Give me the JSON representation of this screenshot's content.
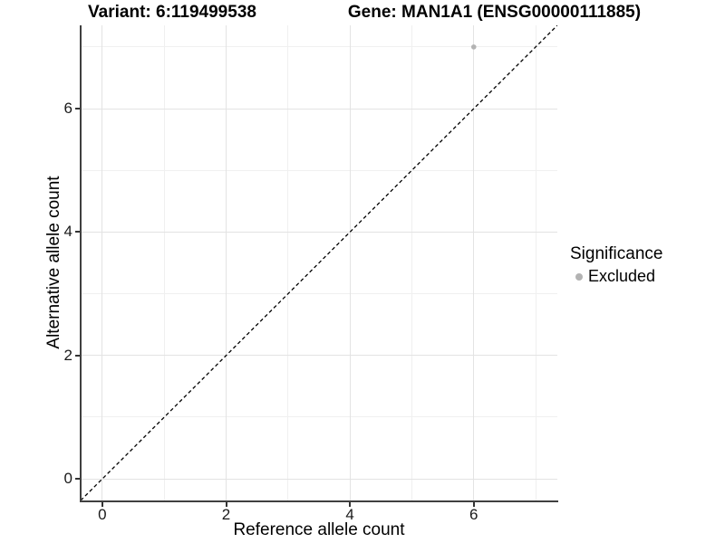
{
  "chart_data": {
    "type": "scatter",
    "titles": {
      "left": "Variant: 6:119499538",
      "right": "Gene: MAN1A1 (ENSG00000111885)"
    },
    "xlabel": "Reference allele count",
    "ylabel": "Alternative allele count",
    "xlim": [
      -0.35,
      7.35
    ],
    "ylim": [
      -0.35,
      7.35
    ],
    "x_ticks": {
      "major": [
        0,
        2,
        4,
        6
      ],
      "minor": [
        1,
        3,
        5,
        7
      ]
    },
    "y_ticks": {
      "major": [
        0,
        2,
        4,
        6
      ],
      "minor": [
        1,
        3,
        5,
        7
      ]
    },
    "grid": "on",
    "series": [
      {
        "name": "Excluded",
        "color": "#b3b3b3",
        "marker": "circle",
        "marker_radius": 2.8,
        "points": [
          {
            "x": 6,
            "y": 7
          }
        ]
      }
    ],
    "reference_line": {
      "type": "identity",
      "slope": 1,
      "intercept": 0,
      "linestyle": "dashed",
      "color": "#000000"
    },
    "legend": {
      "title": "Significance",
      "position": "right",
      "items": [
        {
          "label": "Excluded",
          "color": "#b3b3b3"
        }
      ]
    },
    "colors": {
      "background": "#ffffff",
      "grid_major": "#e3e3e3",
      "grid_minor": "#f0f0f0",
      "axis_line": "#404040",
      "text": "#000000"
    }
  }
}
